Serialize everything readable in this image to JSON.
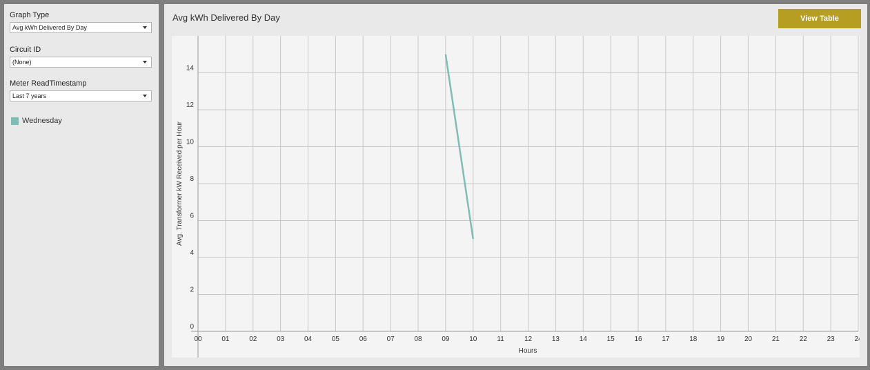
{
  "sidebar": {
    "graph_type": {
      "label": "Graph Type",
      "value": "Avg kWh Delivered By Day"
    },
    "circuit_id": {
      "label": "Circuit ID",
      "value": "(None)"
    },
    "meter_read": {
      "label": "Meter ReadTimestamp",
      "value": "Last 7 years"
    },
    "legend": {
      "label": "Wednesday",
      "color": "#7fbcb4"
    }
  },
  "main": {
    "title": "Avg kWh Delivered By Day",
    "view_table_label": "View Table",
    "button_color": "#b59e22"
  },
  "chart_data": {
    "type": "line",
    "categories": [
      "00",
      "01",
      "02",
      "03",
      "04",
      "05",
      "06",
      "07",
      "08",
      "09",
      "10",
      "11",
      "12",
      "13",
      "14",
      "15",
      "16",
      "17",
      "18",
      "19",
      "20",
      "21",
      "22",
      "23",
      "24"
    ],
    "xlabel": "Hours",
    "ylabel": "Avg. Transformer kW Received per Hour",
    "ylim": [
      0,
      16
    ],
    "yticks": [
      0,
      2,
      4,
      6,
      8,
      10,
      12,
      14
    ],
    "grid": true,
    "series": [
      {
        "name": "Wednesday",
        "color": "#7fbcb4",
        "x": [
          9,
          10
        ],
        "y": [
          15,
          5
        ]
      }
    ]
  }
}
